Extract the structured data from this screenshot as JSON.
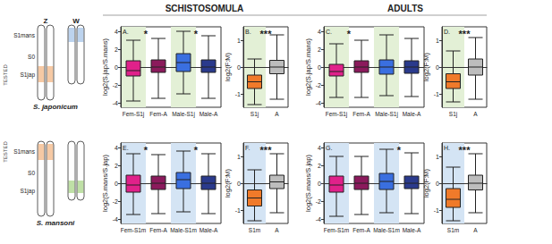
{
  "headers": [
    "SCHISTOSOMULA",
    "ADULTS"
  ],
  "diagrams": [
    {
      "species": "S. japonicum",
      "chromosomes": [
        "Z",
        "W"
      ],
      "regions": [
        "S1mans",
        "S0",
        "S1jap"
      ],
      "tested": "TESTED"
    },
    {
      "species": "S. mansoni",
      "regions": [
        "S1mans",
        "S0",
        "S1jap"
      ],
      "tested": "TESTED"
    }
  ],
  "chart_data": [
    {
      "type": "boxplot",
      "title": "A.",
      "ylabel": "log2(S.jap/S.mans)",
      "categories": [
        "Fem-S1j",
        "Fem-A",
        "Male-S1j",
        "Male-A"
      ],
      "values": [
        [
          -3.8,
          -1,
          -0.4,
          0.7,
          3
        ],
        [
          -3.5,
          -0.6,
          0,
          0.8,
          3.2
        ],
        [
          -3,
          -0.5,
          0.5,
          1.5,
          4
        ],
        [
          -3.5,
          -0.6,
          0,
          0.8,
          3.5
        ]
      ],
      "colors": [
        "#e0218a",
        "#8b1a5c",
        "#3a6fe0",
        "#2a3a8c"
      ],
      "ylim": [
        -4.5,
        4.5
      ],
      "yticks": [
        -4,
        -2,
        0,
        2,
        4
      ],
      "grid": false,
      "annotations": [
        {
          "text": "*",
          "between": [
            "Fem-S1j",
            "Fem-A"
          ]
        },
        {
          "text": "*",
          "between": [
            "Male-S1j",
            "Male-A"
          ]
        }
      ]
    },
    {
      "type": "boxplot",
      "title": "B.",
      "ylabel": "log2(F:M)",
      "categories": [
        "S1j",
        "A"
      ],
      "values": [
        [
          -1.4,
          -0.8,
          -0.55,
          -0.3,
          0.3
        ],
        [
          -1.2,
          -0.25,
          0,
          0.25,
          1.2
        ]
      ],
      "colors": [
        "#f07a2a",
        "#bdbdbd"
      ],
      "ylim": [
        -1.5,
        1.5
      ],
      "yticks": [
        -1,
        0,
        1
      ],
      "grid": false,
      "annotations": [
        {
          "text": "***",
          "between": [
            "S1j",
            "A"
          ]
        }
      ]
    },
    {
      "type": "boxplot",
      "title": "C.",
      "ylabel": "log2(S.jap/S.mans)",
      "categories": [
        "Fem-S1j",
        "Fem-A",
        "Male-S1j",
        "Male-A"
      ],
      "values": [
        [
          -3.4,
          -1,
          -0.5,
          0.3,
          2.6
        ],
        [
          -3.4,
          -0.6,
          0,
          0.7,
          3
        ],
        [
          -3.2,
          -0.8,
          0,
          0.8,
          3.6
        ],
        [
          -3.3,
          -0.7,
          0,
          0.7,
          3.2
        ]
      ],
      "colors": [
        "#e0218a",
        "#8b1a5c",
        "#3a6fe0",
        "#2a3a8c"
      ],
      "ylim": [
        -4.5,
        4.5
      ],
      "yticks": [
        -4,
        -2,
        0,
        2,
        4
      ],
      "grid": false,
      "annotations": [
        {
          "text": "*",
          "between": [
            "Fem-S1j",
            "Fem-A"
          ]
        }
      ]
    },
    {
      "type": "boxplot",
      "title": "D.",
      "ylabel": "log2(F:M)",
      "categories": [
        "S1j",
        "A"
      ],
      "values": [
        [
          -1.3,
          -0.8,
          -0.55,
          -0.25,
          0.6
        ],
        [
          -1.2,
          -0.3,
          0,
          0.3,
          1.1
        ]
      ],
      "colors": [
        "#f07a2a",
        "#bdbdbd"
      ],
      "ylim": [
        -1.5,
        1.5
      ],
      "yticks": [
        -1,
        0,
        1
      ],
      "grid": false,
      "annotations": [
        {
          "text": "***",
          "between": [
            "S1j",
            "A"
          ]
        }
      ]
    },
    {
      "type": "boxplot",
      "title": "E.",
      "ylabel": "log2(S.mans/S.jap)",
      "categories": [
        "Fem-S1m",
        "Fem-A",
        "Male-S1m",
        "Male-A"
      ],
      "values": [
        [
          -3.5,
          -1,
          -0.2,
          0.9,
          3.3
        ],
        [
          -3.4,
          -0.7,
          0,
          0.8,
          3.2
        ],
        [
          -3.2,
          -0.6,
          0.4,
          1.2,
          3.6
        ],
        [
          -3.4,
          -0.7,
          0,
          0.8,
          3.3
        ]
      ],
      "colors": [
        "#e0218a",
        "#8b1a5c",
        "#3a6fe0",
        "#2a3a8c"
      ],
      "ylim": [
        -4.5,
        4.5
      ],
      "yticks": [
        -4,
        -2,
        0,
        2,
        4
      ],
      "grid": false,
      "annotations": [
        {
          "text": "*",
          "between": [
            "Fem-S1m",
            "Fem-A"
          ]
        },
        {
          "text": "*",
          "between": [
            "Male-S1m",
            "Male-A"
          ]
        }
      ]
    },
    {
      "type": "boxplot",
      "title": "F.",
      "ylabel": "log2(F:M)",
      "categories": [
        "S1m",
        "A"
      ],
      "values": [
        [
          -1.4,
          -0.85,
          -0.55,
          -0.25,
          0.5
        ],
        [
          -1.1,
          -0.2,
          0.05,
          0.3,
          1.1
        ]
      ],
      "colors": [
        "#f07a2a",
        "#bdbdbd"
      ],
      "ylim": [
        -1.5,
        1.5
      ],
      "yticks": [
        -1,
        0,
        1
      ],
      "grid": false,
      "annotations": [
        {
          "text": "***",
          "between": [
            "S1m",
            "A"
          ]
        }
      ]
    },
    {
      "type": "boxplot",
      "title": "G.",
      "ylabel": "log2(S.mans/S.jap)",
      "categories": [
        "Fem-S1m",
        "Fem-A",
        "Male-S1m",
        "Male-A"
      ],
      "values": [
        [
          -3.7,
          -1,
          -0.2,
          0.8,
          3
        ],
        [
          -3.5,
          -0.7,
          0,
          0.8,
          3
        ],
        [
          -3.3,
          -0.7,
          0.2,
          1.1,
          3.8
        ],
        [
          -3.4,
          -0.6,
          0,
          0.8,
          3.4
        ]
      ],
      "colors": [
        "#e0218a",
        "#8b1a5c",
        "#3a6fe0",
        "#2a3a8c"
      ],
      "ylim": [
        -4.5,
        4.5
      ],
      "yticks": [
        -4,
        -2,
        0,
        2,
        4
      ],
      "grid": false,
      "annotations": [
        {
          "text": "*",
          "between": [
            "Male-S1m",
            "Male-A"
          ]
        }
      ]
    },
    {
      "type": "boxplot",
      "title": "H.",
      "ylabel": "log2(F:M)",
      "categories": [
        "S1m",
        "A"
      ],
      "values": [
        [
          -1.4,
          -0.9,
          -0.6,
          -0.2,
          0.6
        ],
        [
          -1.1,
          -0.25,
          0,
          0.3,
          1.1
        ]
      ],
      "colors": [
        "#f07a2a",
        "#bdbdbd"
      ],
      "ylim": [
        -1.5,
        1.5
      ],
      "yticks": [
        -1,
        0,
        1
      ],
      "grid": false,
      "annotations": [
        {
          "text": "***",
          "between": [
            "S1m",
            "A"
          ]
        }
      ]
    }
  ]
}
